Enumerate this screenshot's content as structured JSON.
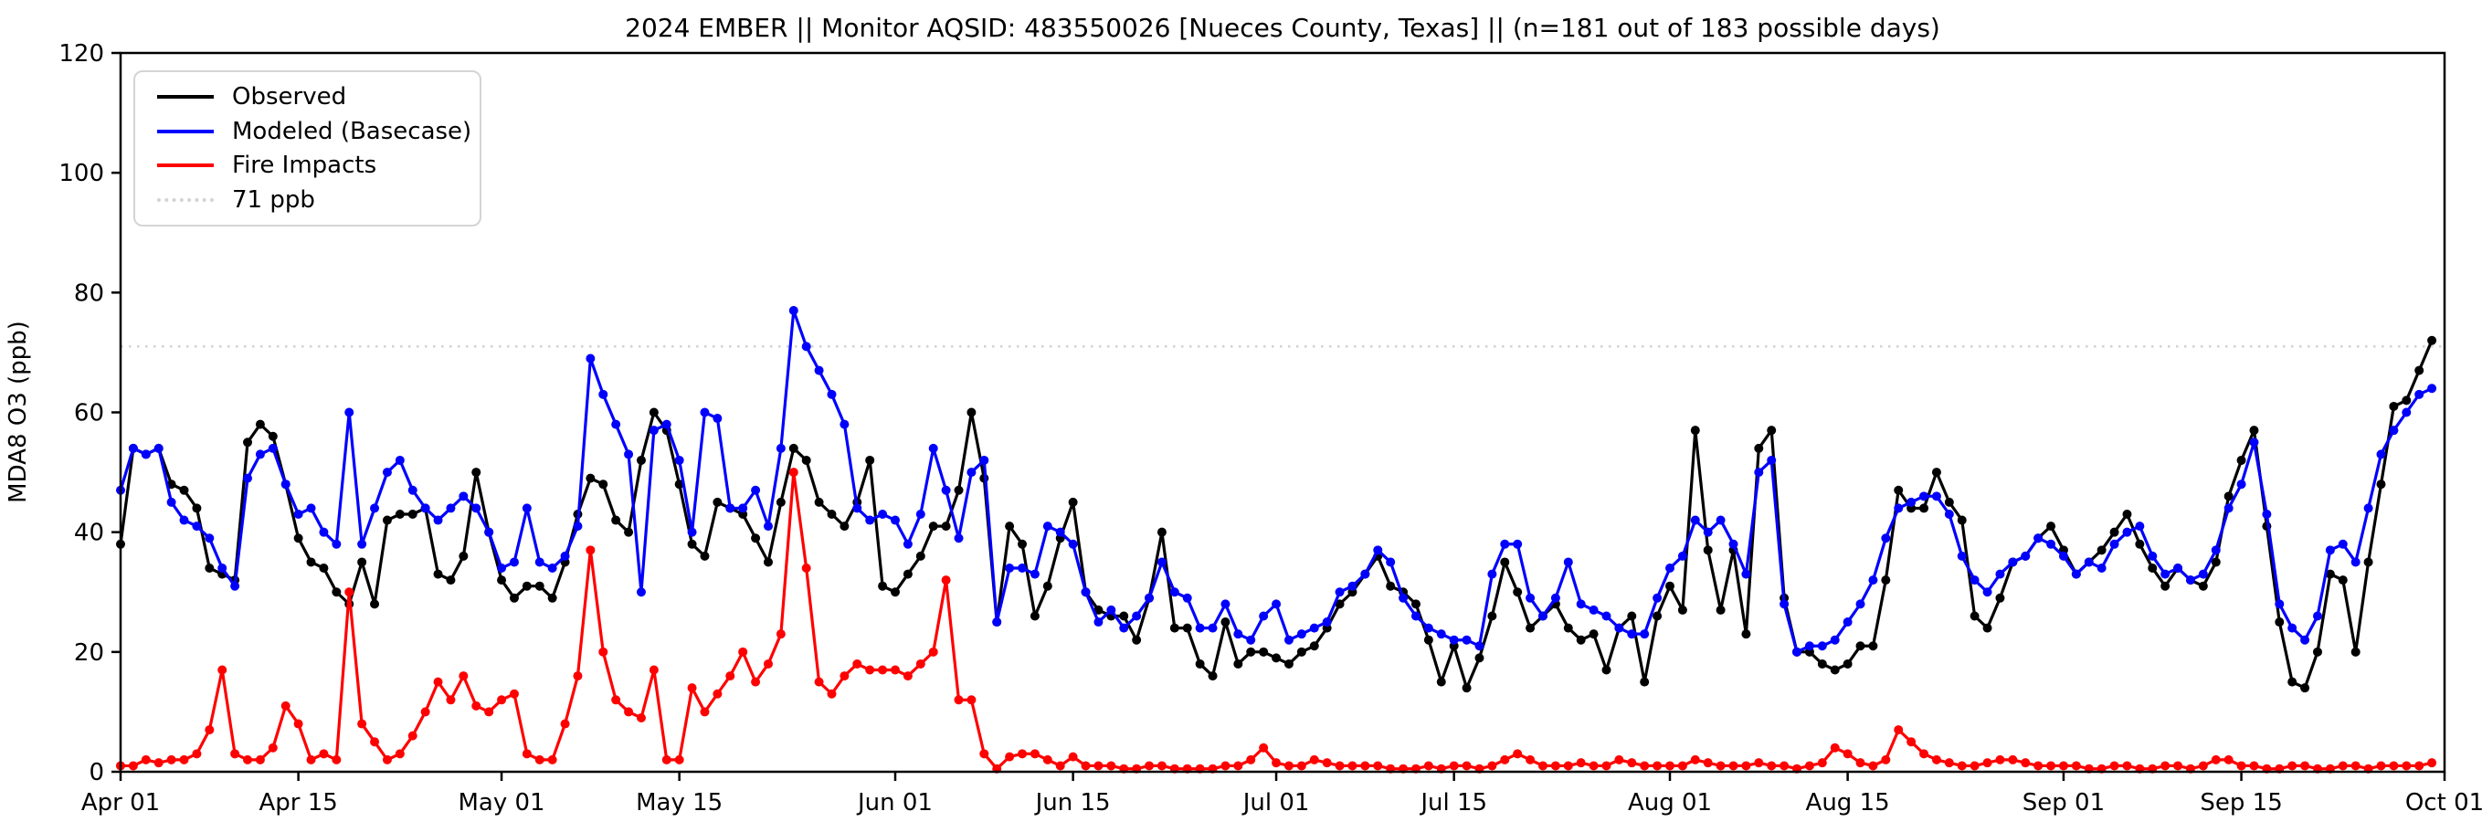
{
  "title": "2024 EMBER || Monitor AQSID: 483550026 [Nueces County, Texas] || (n=181 out of 183 possible days)",
  "y_axis": {
    "label": "MDA8 O3 (ppb)",
    "ticks": [
      0,
      20,
      40,
      60,
      80,
      100,
      120
    ]
  },
  "x_axis": {
    "tick_labels": [
      "Apr 01",
      "Apr 15",
      "May 01",
      "May 15",
      "Jun 01",
      "Jun 15",
      "Jul 01",
      "Jul 15",
      "Aug 01",
      "Aug 15",
      "Sep 01",
      "Sep 15",
      "Oct 01"
    ],
    "tick_day_index": [
      0,
      14,
      30,
      44,
      61,
      75,
      91,
      105,
      122,
      136,
      153,
      167,
      183
    ]
  },
  "legend": [
    {
      "label": "Observed",
      "color": "#000000",
      "style": "solid"
    },
    {
      "label": "Modeled (Basecase)",
      "color": "#0000ff",
      "style": "solid"
    },
    {
      "label": "Fire Impacts",
      "color": "#ff0000",
      "style": "solid"
    },
    {
      "label": "71 ppb",
      "color": "#d3d3d3",
      "style": "dotted"
    }
  ],
  "chart_data": {
    "type": "line",
    "title": "2024 EMBER || Monitor AQSID: 483550026 [Nueces County, Texas] || (n=181 out of 183 possible days)",
    "xlabel": "",
    "ylabel": "MDA8 O3 (ppb)",
    "ylim": [
      0,
      120
    ],
    "x_start_date": "2024-04-01",
    "x_end_date": "2024-09-30",
    "x_tick_labels": [
      "Apr 01",
      "Apr 15",
      "May 01",
      "May 15",
      "Jun 01",
      "Jun 15",
      "Jul 01",
      "Jul 15",
      "Aug 01",
      "Aug 15",
      "Sep 01",
      "Sep 15",
      "Oct 01"
    ],
    "x_tick_day_index": [
      0,
      14,
      30,
      44,
      61,
      75,
      91,
      105,
      122,
      136,
      153,
      167,
      183
    ],
    "grid": false,
    "legend_position": "upper left",
    "reference_line": {
      "value": 71,
      "label": "71 ppb",
      "color": "#d3d3d3",
      "style": "dotted"
    },
    "series": [
      {
        "name": "Observed",
        "color": "#000000",
        "marker": "circle",
        "values": [
          38,
          54,
          53,
          54,
          48,
          47,
          44,
          34,
          33,
          32,
          55,
          58,
          56,
          48,
          39,
          35,
          34,
          30,
          28,
          35,
          28,
          42,
          43,
          43,
          44,
          33,
          32,
          36,
          50,
          40,
          32,
          29,
          31,
          31,
          29,
          35,
          43,
          49,
          48,
          42,
          40,
          52,
          60,
          57,
          48,
          38,
          36,
          45,
          44,
          43,
          39,
          35,
          45,
          54,
          52,
          45,
          43,
          41,
          45,
          52,
          31,
          30,
          33,
          36,
          41,
          41,
          47,
          60,
          49,
          25,
          41,
          38,
          26,
          31,
          39,
          45,
          30,
          27,
          26,
          26,
          22,
          29,
          40,
          24,
          24,
          18,
          16,
          25,
          18,
          20,
          20,
          19,
          18,
          20,
          21,
          24,
          28,
          30,
          33,
          36,
          31,
          30,
          28,
          22,
          15,
          21,
          14,
          19,
          26,
          35,
          30,
          24,
          26,
          28,
          24,
          22,
          23,
          17,
          24,
          26,
          15,
          26,
          31,
          27,
          57,
          37,
          27,
          37,
          23,
          54,
          57,
          29,
          20,
          20,
          18,
          17,
          18,
          21,
          21,
          32,
          47,
          44,
          44,
          50,
          45,
          42,
          26,
          24,
          29,
          35,
          36,
          39,
          41,
          37,
          33,
          35,
          37,
          40,
          43,
          38,
          34,
          31,
          34,
          32,
          31,
          35,
          46,
          52,
          57,
          41,
          25,
          15,
          14,
          20,
          33,
          32,
          20,
          35,
          48,
          61,
          62,
          67,
          72
        ]
      },
      {
        "name": "Modeled (Basecase)",
        "color": "#0000ff",
        "marker": "circle",
        "values": [
          47,
          54,
          53,
          54,
          45,
          42,
          41,
          39,
          34,
          31,
          49,
          53,
          54,
          48,
          43,
          44,
          40,
          38,
          60,
          38,
          44,
          50,
          52,
          47,
          44,
          42,
          44,
          46,
          44,
          40,
          34,
          35,
          44,
          35,
          34,
          36,
          41,
          69,
          63,
          58,
          53,
          30,
          57,
          58,
          52,
          40,
          60,
          59,
          44,
          44,
          47,
          41,
          54,
          77,
          71,
          67,
          63,
          58,
          44,
          42,
          43,
          42,
          38,
          43,
          54,
          47,
          39,
          50,
          52,
          25,
          34,
          34,
          33,
          41,
          40,
          38,
          30,
          25,
          27,
          24,
          26,
          29,
          35,
          30,
          29,
          24,
          24,
          28,
          23,
          22,
          26,
          28,
          22,
          23,
          24,
          25,
          30,
          31,
          33,
          37,
          35,
          29,
          26,
          24,
          23,
          22,
          22,
          21,
          33,
          38,
          38,
          29,
          26,
          29,
          35,
          28,
          27,
          26,
          24,
          23,
          23,
          29,
          34,
          36,
          42,
          40,
          42,
          38,
          33,
          50,
          52,
          28,
          20,
          21,
          21,
          22,
          25,
          28,
          32,
          39,
          44,
          45,
          46,
          46,
          43,
          36,
          32,
          30,
          33,
          35,
          36,
          39,
          38,
          36,
          33,
          35,
          34,
          38,
          40,
          41,
          36,
          33,
          34,
          32,
          33,
          37,
          44,
          48,
          55,
          43,
          28,
          24,
          22,
          26,
          37,
          38,
          35,
          44,
          53,
          57,
          60,
          63,
          64
        ]
      },
      {
        "name": "Fire Impacts",
        "color": "#ff0000",
        "marker": "circle",
        "values": [
          1,
          1,
          2,
          1.5,
          2,
          2,
          3,
          7,
          17,
          3,
          2,
          2,
          4,
          11,
          8,
          2,
          3,
          2,
          30,
          8,
          5,
          2,
          3,
          6,
          10,
          15,
          12,
          16,
          11,
          10,
          12,
          13,
          3,
          2,
          2,
          8,
          16,
          37,
          20,
          12,
          10,
          9,
          17,
          2,
          2,
          14,
          10,
          13,
          16,
          20,
          15,
          18,
          23,
          50,
          34,
          15,
          13,
          16,
          18,
          17,
          17,
          17,
          16,
          18,
          20,
          32,
          12,
          12,
          3,
          0.5,
          2.5,
          3,
          3,
          2,
          1,
          2.5,
          1,
          1,
          1,
          0.5,
          0.5,
          1,
          1,
          0.5,
          0.5,
          0.5,
          0.5,
          1,
          1,
          2,
          4,
          1.5,
          1,
          1,
          2,
          1.5,
          1,
          1,
          1,
          1,
          0.5,
          0.5,
          0.5,
          1,
          0.5,
          1,
          1,
          0.5,
          1,
          2,
          3,
          2,
          1,
          1,
          1,
          1.5,
          1,
          1,
          2,
          1.5,
          1,
          1,
          1,
          1,
          2,
          1.5,
          1,
          1,
          1,
          1.5,
          1,
          1,
          0.5,
          1,
          1.5,
          4,
          3,
          1.5,
          1,
          2,
          7,
          5,
          3,
          2,
          1.5,
          1,
          1,
          1.5,
          2,
          2,
          1.5,
          1,
          1,
          1,
          1,
          0.5,
          0.5,
          1,
          1,
          0.5,
          0.5,
          1,
          1,
          0.5,
          1,
          2,
          2,
          1,
          1,
          0.5,
          0.5,
          1,
          1,
          0.5,
          0.5,
          1,
          1,
          0.5,
          1,
          1,
          1,
          1,
          1.5
        ]
      }
    ]
  }
}
